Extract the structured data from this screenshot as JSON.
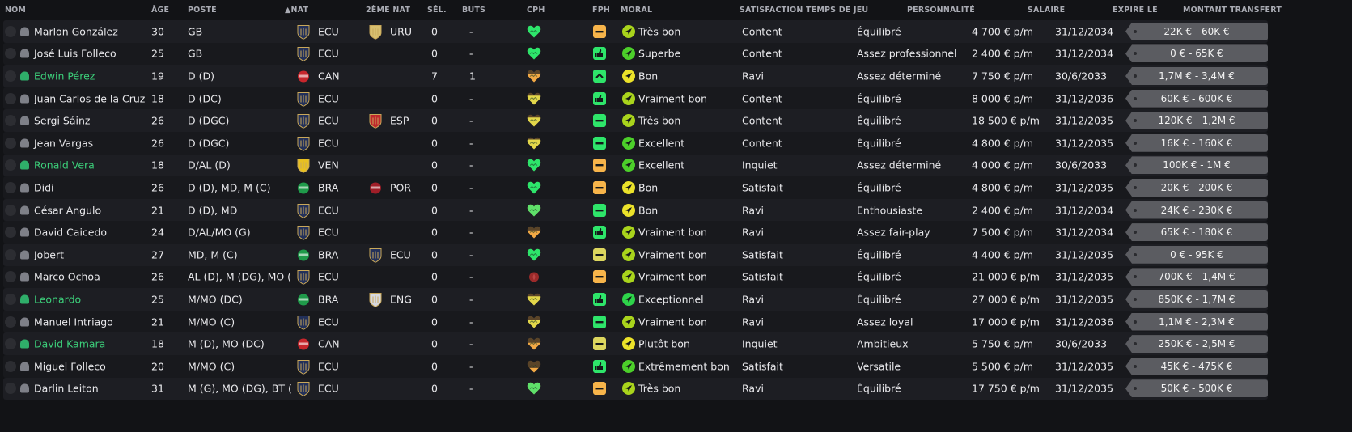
{
  "headers": {
    "nom": "NOM",
    "age": "ÂGE",
    "poste": "POSTE",
    "nat": "▲NAT",
    "nat2": "2ÈME NAT",
    "sel": "SÉL.",
    "buts": "BUTS",
    "cph": "CPH",
    "fph": "FPH",
    "moral": "MORAL",
    "sat": "SATISFACTION TEMPS DE JEU",
    "pers": "PERSONNALITÉ",
    "sal": "SALAIRE",
    "exp": "EXPIRE LE",
    "tr": "MONTANT TRANSFERT"
  },
  "colors": {
    "cph": {
      "green": "#2de56b",
      "lightgreen": "#5fe06a",
      "yellow": "#e3d74a",
      "orange": "#f2a945",
      "injured": "#9b2a2a"
    },
    "fph": {
      "green": "#2ee56a",
      "orange": "#f7b44a",
      "yellow": "#dcd65e"
    },
    "moral": {
      "lime": "#a9d41c",
      "green": "#4ccf2a",
      "yellow": "#ebe22a",
      "brightgreen": "#2ed44a"
    },
    "flags": {
      "ECU": "#22305a",
      "URU": "#d8c070",
      "CAN": "#c8262c",
      "ESP": "#c0282c",
      "VEN": "#e8c020",
      "BRA": "#1f9a4a",
      "POR": "#a01e28",
      "ENG": "#d6d8e0"
    }
  },
  "players": [
    {
      "name": "Marlon González",
      "young": false,
      "age": "30",
      "pos": "GB",
      "nat": "ECU",
      "nat2": "URU",
      "sel": "0",
      "buts": "-",
      "cph": "green",
      "cph_level": 1,
      "fph": "orange",
      "fph_icon": "minus",
      "moral_color": "lime",
      "moral_icon": "arrow",
      "moral": "Très bon",
      "sat": "Content",
      "pers": "Équilibré",
      "sal": "4 700 € p/m",
      "exp": "31/12/2034",
      "tr": "22K € - 60K €"
    },
    {
      "name": "José Luis Folleco",
      "young": false,
      "age": "25",
      "pos": "GB",
      "nat": "ECU",
      "nat2": "",
      "sel": "0",
      "buts": "-",
      "cph": "green",
      "cph_level": 1,
      "fph": "green",
      "fph_icon": "thumb",
      "moral_color": "green",
      "moral_icon": "arrow",
      "moral": "Superbe",
      "sat": "Content",
      "pers": "Assez professionnel",
      "sal": "2 400 € p/m",
      "exp": "31/12/2034",
      "tr": "0 € - 65K €"
    },
    {
      "name": "Edwin Pérez",
      "young": true,
      "age": "19",
      "pos": "D (D)",
      "nat": "CAN",
      "nat2": "",
      "sel": "7",
      "buts": "1",
      "cph": "orange",
      "cph_level": 0.6,
      "fph": "green",
      "fph_icon": "up",
      "moral_color": "yellow",
      "moral_icon": "arrow",
      "moral": "Bon",
      "sat": "Ravi",
      "pers": "Assez déterminé",
      "sal": "7 750 € p/m",
      "exp": "30/6/2033",
      "tr": "1,7M € - 3,4M €"
    },
    {
      "name": "Juan Carlos de la Cruz",
      "young": false,
      "age": "18",
      "pos": "D (DC)",
      "nat": "ECU",
      "nat2": "",
      "sel": "0",
      "buts": "-",
      "cph": "yellow",
      "cph_level": 0.7,
      "fph": "green",
      "fph_icon": "thumb",
      "moral_color": "lime",
      "moral_icon": "arrow",
      "moral": "Vraiment bon",
      "sat": "Content",
      "pers": "Équilibré",
      "sal": "8 000 € p/m",
      "exp": "31/12/2036",
      "tr": "60K € - 600K €"
    },
    {
      "name": "Sergi Sáinz",
      "young": false,
      "age": "26",
      "pos": "D (DGC)",
      "nat": "ECU",
      "nat2": "ESP",
      "sel": "0",
      "buts": "-",
      "cph": "yellow",
      "cph_level": 0.7,
      "fph": "green",
      "fph_icon": "minus",
      "moral_color": "lime",
      "moral_icon": "arrow",
      "moral": "Très bon",
      "sat": "Content",
      "pers": "Équilibré",
      "sal": "18 500 € p/m",
      "exp": "31/12/2035",
      "tr": "120K € - 1,2M €"
    },
    {
      "name": "Jean Vargas",
      "young": false,
      "age": "26",
      "pos": "D (DGC)",
      "nat": "ECU",
      "nat2": "",
      "sel": "0",
      "buts": "-",
      "cph": "yellow",
      "cph_level": 0.75,
      "fph": "green",
      "fph_icon": "minus",
      "moral_color": "green",
      "moral_icon": "arrow",
      "moral": "Excellent",
      "sat": "Content",
      "pers": "Équilibré",
      "sal": "4 800 € p/m",
      "exp": "31/12/2035",
      "tr": "16K € - 160K €"
    },
    {
      "name": "Ronald Vera",
      "young": true,
      "age": "18",
      "pos": "D/AL (D)",
      "nat": "VEN",
      "nat2": "",
      "sel": "0",
      "buts": "-",
      "cph": "green",
      "cph_level": 1,
      "fph": "orange",
      "fph_icon": "minus",
      "moral_color": "green",
      "moral_icon": "arrow",
      "moral": "Excellent",
      "sat": "Inquiet",
      "pers": "Assez déterminé",
      "sal": "4 000 € p/m",
      "exp": "30/6/2033",
      "tr": "100K € - 1M €"
    },
    {
      "name": "Didi",
      "young": false,
      "age": "26",
      "pos": "D (D), MD, M (C)",
      "nat": "BRA",
      "nat2": "POR",
      "sel": "0",
      "buts": "-",
      "cph": "green",
      "cph_level": 1,
      "fph": "orange",
      "fph_icon": "minus",
      "moral_color": "yellow",
      "moral_icon": "arrow",
      "moral": "Bon",
      "sat": "Satisfait",
      "pers": "Équilibré",
      "sal": "4 800 € p/m",
      "exp": "31/12/2035",
      "tr": "20K € - 200K €"
    },
    {
      "name": "César Angulo",
      "young": false,
      "age": "21",
      "pos": "D (D), MD",
      "nat": "ECU",
      "nat2": "",
      "sel": "0",
      "buts": "-",
      "cph": "lightgreen",
      "cph_level": 1,
      "fph": "green",
      "fph_icon": "minus",
      "moral_color": "yellow",
      "moral_icon": "arrow",
      "moral": "Bon",
      "sat": "Ravi",
      "pers": "Enthousiaste",
      "sal": "2 400 € p/m",
      "exp": "31/12/2034",
      "tr": "24K € - 230K €"
    },
    {
      "name": "David Caicedo",
      "young": false,
      "age": "24",
      "pos": "D/AL/MO (G)",
      "nat": "ECU",
      "nat2": "",
      "sel": "0",
      "buts": "-",
      "cph": "orange",
      "cph_level": 0.6,
      "fph": "green",
      "fph_icon": "thumb",
      "moral_color": "lime",
      "moral_icon": "arrow",
      "moral": "Vraiment bon",
      "sat": "Ravi",
      "pers": "Assez fair-play",
      "sal": "7 500 € p/m",
      "exp": "31/12/2034",
      "tr": "65K € - 180K €"
    },
    {
      "name": "Jobert",
      "young": false,
      "age": "27",
      "pos": "MD, M (C)",
      "nat": "BRA",
      "nat2": "ECU",
      "sel": "0",
      "buts": "-",
      "cph": "green",
      "cph_level": 1,
      "fph": "yellow",
      "fph_icon": "minus",
      "moral_color": "lime",
      "moral_icon": "arrow",
      "moral": "Vraiment bon",
      "sat": "Satisfait",
      "pers": "Équilibré",
      "sal": "4 400 € p/m",
      "exp": "31/12/2035",
      "tr": "0 € - 95K €"
    },
    {
      "name": "Marco Ochoa",
      "young": false,
      "age": "26",
      "pos": "AL (D), M (DG), MO (...",
      "nat": "ECU",
      "nat2": "",
      "sel": "0",
      "buts": "-",
      "cph": "injured",
      "cph_level": 1,
      "fph": "orange",
      "fph_icon": "minus",
      "moral_color": "lime",
      "moral_icon": "arrow",
      "moral": "Vraiment bon",
      "sat": "Satisfait",
      "pers": "Équilibré",
      "sal": "21 000 € p/m",
      "exp": "31/12/2035",
      "tr": "700K € - 1,4M €"
    },
    {
      "name": "Leonardo",
      "young": true,
      "age": "25",
      "pos": "M/MO (DC)",
      "nat": "BRA",
      "nat2": "ENG",
      "sel": "0",
      "buts": "-",
      "cph": "yellow",
      "cph_level": 0.7,
      "fph": "green",
      "fph_icon": "thumb",
      "moral_color": "brightgreen",
      "moral_icon": "arrow",
      "moral": "Exceptionnel",
      "sat": "Ravi",
      "pers": "Équilibré",
      "sal": "27 000 € p/m",
      "exp": "31/12/2035",
      "tr": "850K € - 1,7M €"
    },
    {
      "name": "Manuel Intriago",
      "young": false,
      "age": "21",
      "pos": "M/MO (C)",
      "nat": "ECU",
      "nat2": "",
      "sel": "0",
      "buts": "-",
      "cph": "yellow",
      "cph_level": 0.65,
      "fph": "green",
      "fph_icon": "minus",
      "moral_color": "lime",
      "moral_icon": "arrow",
      "moral": "Vraiment bon",
      "sat": "Ravi",
      "pers": "Assez loyal",
      "sal": "17 000 € p/m",
      "exp": "31/12/2036",
      "tr": "1,1M € - 2,3M €"
    },
    {
      "name": "David Kamara",
      "young": true,
      "age": "18",
      "pos": "M (D), MO (DC)",
      "nat": "CAN",
      "nat2": "",
      "sel": "0",
      "buts": "-",
      "cph": "orange",
      "cph_level": 0.55,
      "fph": "yellow",
      "fph_icon": "minus",
      "moral_color": "yellow",
      "moral_icon": "arrow",
      "moral": "Plutôt bon",
      "sat": "Inquiet",
      "pers": "Ambitieux",
      "sal": "5 750 € p/m",
      "exp": "30/6/2033",
      "tr": "250K € - 2,5M €"
    },
    {
      "name": "Miguel Folleco",
      "young": false,
      "age": "20",
      "pos": "M/MO (C)",
      "nat": "ECU",
      "nat2": "",
      "sel": "0",
      "buts": "-",
      "cph": "orange",
      "cph_level": 0.35,
      "fph": "green",
      "fph_icon": "thumb",
      "moral_color": "green",
      "moral_icon": "arrow",
      "moral": "Extrêmement bon",
      "sat": "Satisfait",
      "pers": "Versatile",
      "sal": "5 500 € p/m",
      "exp": "31/12/2035",
      "tr": "45K € - 475K €"
    },
    {
      "name": "Darlin Leiton",
      "young": false,
      "age": "31",
      "pos": "M (G), MO (DG), BT (...",
      "nat": "ECU",
      "nat2": "",
      "sel": "0",
      "buts": "-",
      "cph": "lightgreen",
      "cph_level": 1,
      "fph": "orange",
      "fph_icon": "minus",
      "moral_color": "lime",
      "moral_icon": "arrow",
      "moral": "Très bon",
      "sat": "Ravi",
      "pers": "Équilibré",
      "sal": "17 750 € p/m",
      "exp": "31/12/2035",
      "tr": "50K € - 500K €"
    }
  ]
}
